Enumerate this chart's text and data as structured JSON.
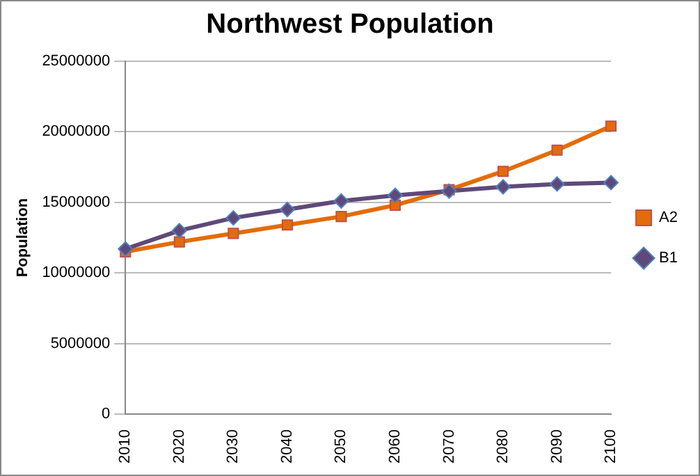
{
  "chart_data": {
    "type": "line",
    "title": "Northwest Population",
    "ylabel": "Population",
    "categories": [
      "2010",
      "2020",
      "2030",
      "2040",
      "2050",
      "2060",
      "2070",
      "2080",
      "2090",
      "2100"
    ],
    "series": [
      {
        "name": "A2",
        "color": "#e36c0a",
        "values": [
          11500000,
          12200000,
          12800000,
          13400000,
          14000000,
          14800000,
          15900000,
          17200000,
          18700000,
          20400000
        ],
        "marker": "square"
      },
      {
        "name": "B1",
        "color": "#5f497a",
        "values": [
          11700000,
          13000000,
          13900000,
          14500000,
          15100000,
          15500000,
          15800000,
          16100000,
          16300000,
          16400000
        ],
        "marker": "diamond"
      }
    ],
    "ylim": [
      0,
      25000000
    ],
    "yticks": [
      0,
      5000000,
      10000000,
      15000000,
      20000000,
      25000000
    ],
    "grid": "y",
    "legend": "right",
    "line_style": "solid"
  }
}
